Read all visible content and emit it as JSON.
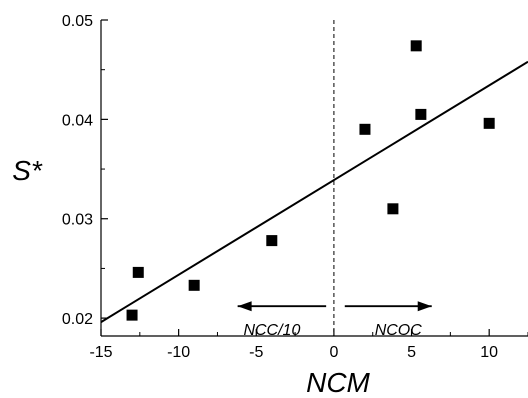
{
  "chart_data": {
    "type": "scatter",
    "xlabel": "NCM",
    "ylabel": "S*",
    "xlim": [
      -15,
      12.5
    ],
    "ylim": [
      0.0182,
      0.05
    ],
    "x_ticks": [
      -15,
      -10,
      -5,
      0,
      5,
      10
    ],
    "x_tick_labels": [
      "-15",
      "-10",
      "-5",
      "0",
      "5",
      "10"
    ],
    "y_ticks": [
      0.02,
      0.03,
      0.04,
      0.05
    ],
    "y_tick_labels": [
      "0.02",
      "0.03",
      "0.04",
      "0.05"
    ],
    "grid": false,
    "points": [
      {
        "x": -13.0,
        "y": 0.0203
      },
      {
        "x": -12.6,
        "y": 0.0246
      },
      {
        "x": -9.0,
        "y": 0.0233
      },
      {
        "x": -4.0,
        "y": 0.0278
      },
      {
        "x": 2.0,
        "y": 0.039
      },
      {
        "x": 3.8,
        "y": 0.031
      },
      {
        "x": 5.3,
        "y": 0.0474
      },
      {
        "x": 5.6,
        "y": 0.0405
      },
      {
        "x": 10.0,
        "y": 0.0396
      }
    ],
    "fit_line": {
      "x": [
        -15,
        12.5
      ],
      "y": [
        0.0196,
        0.0458
      ]
    },
    "reference_line": {
      "x": 0,
      "style": "dashed"
    },
    "annotations": [
      {
        "text": "NCC/10",
        "direction": "left",
        "arrow_from_x": -0.5,
        "arrow_to_x": -6.2,
        "y": 0.0212
      },
      {
        "text": "NCOC",
        "direction": "right",
        "arrow_from_x": 0.7,
        "arrow_to_x": 6.3,
        "y": 0.0212
      }
    ]
  }
}
